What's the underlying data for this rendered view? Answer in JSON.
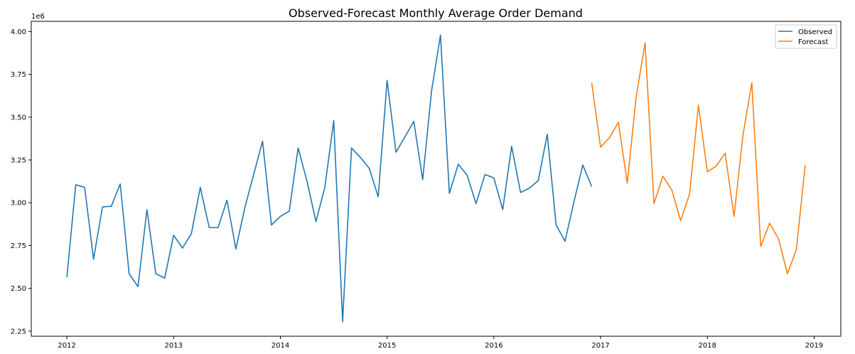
{
  "chart_data": {
    "type": "line",
    "title": "Observed-Forecast Monthly Average Order Demand",
    "xlabel": "",
    "ylabel": "",
    "y_offset_text": "1e6",
    "ylim": [
      2.22,
      4.06
    ],
    "y_ticks": [
      2.25,
      2.5,
      2.75,
      3.0,
      3.25,
      3.5,
      3.75,
      4.0
    ],
    "y_tick_labels": [
      "2.25",
      "2.50",
      "2.75",
      "3.00",
      "3.25",
      "3.50",
      "3.75",
      "4.00"
    ],
    "x_ticks": [
      "2012-01",
      "2013-01",
      "2014-01",
      "2015-01",
      "2016-01",
      "2017-01",
      "2018-01",
      "2019-01"
    ],
    "x_tick_labels": [
      "2012",
      "2013",
      "2014",
      "2015",
      "2016",
      "2017",
      "2018",
      "2019"
    ],
    "xlim": [
      "2011-09",
      "2019-04"
    ],
    "grid": false,
    "legend_position": "top-right",
    "series": [
      {
        "name": "Observed",
        "color": "#1f77b4",
        "x": [
          "2012-01",
          "2012-02",
          "2012-03",
          "2012-04",
          "2012-05",
          "2012-06",
          "2012-07",
          "2012-08",
          "2012-09",
          "2012-10",
          "2012-11",
          "2012-12",
          "2013-01",
          "2013-02",
          "2013-03",
          "2013-04",
          "2013-05",
          "2013-06",
          "2013-07",
          "2013-08",
          "2013-09",
          "2013-10",
          "2013-11",
          "2013-12",
          "2014-01",
          "2014-02",
          "2014-03",
          "2014-04",
          "2014-05",
          "2014-06",
          "2014-07",
          "2014-08",
          "2014-09",
          "2014-10",
          "2014-11",
          "2014-12",
          "2015-01",
          "2015-02",
          "2015-03",
          "2015-04",
          "2015-05",
          "2015-06",
          "2015-07",
          "2015-08",
          "2015-09",
          "2015-10",
          "2015-11",
          "2015-12",
          "2016-01",
          "2016-02",
          "2016-03",
          "2016-04",
          "2016-05",
          "2016-06",
          "2016-07",
          "2016-08",
          "2016-09",
          "2016-10",
          "2016-11",
          "2016-12"
        ],
        "y": [
          2.565,
          3.105,
          3.09,
          2.67,
          2.975,
          2.98,
          3.11,
          2.585,
          2.51,
          2.96,
          2.585,
          2.56,
          2.81,
          2.735,
          2.82,
          3.09,
          2.855,
          2.855,
          3.015,
          2.73,
          2.97,
          3.165,
          3.36,
          2.87,
          2.92,
          2.95,
          3.32,
          3.125,
          2.89,
          3.09,
          3.48,
          2.305,
          3.32,
          3.265,
          3.2,
          3.035,
          3.715,
          3.295,
          3.385,
          3.475,
          3.135,
          3.655,
          3.98,
          3.055,
          3.225,
          3.16,
          2.995,
          3.165,
          3.145,
          2.96,
          3.33,
          3.06,
          3.085,
          3.13,
          3.4,
          2.87,
          2.775,
          3.005,
          3.22,
          3.095
        ]
      },
      {
        "name": "Forecast",
        "color": "#ff7f0e",
        "x": [
          "2016-12",
          "2017-01",
          "2017-02",
          "2017-03",
          "2017-04",
          "2017-05",
          "2017-06",
          "2017-07",
          "2017-08",
          "2017-09",
          "2017-10",
          "2017-11",
          "2017-12",
          "2018-01",
          "2018-02",
          "2018-03",
          "2018-04",
          "2018-05",
          "2018-06",
          "2018-07",
          "2018-08",
          "2018-09",
          "2018-10",
          "2018-11",
          "2018-12"
        ],
        "y": [
          3.7,
          3.325,
          3.38,
          3.47,
          3.115,
          3.62,
          3.935,
          2.995,
          3.155,
          3.075,
          2.895,
          3.05,
          3.57,
          3.18,
          3.215,
          3.29,
          2.92,
          3.395,
          3.7,
          2.745,
          2.88,
          2.79,
          2.585,
          2.725,
          3.22
        ]
      }
    ]
  }
}
